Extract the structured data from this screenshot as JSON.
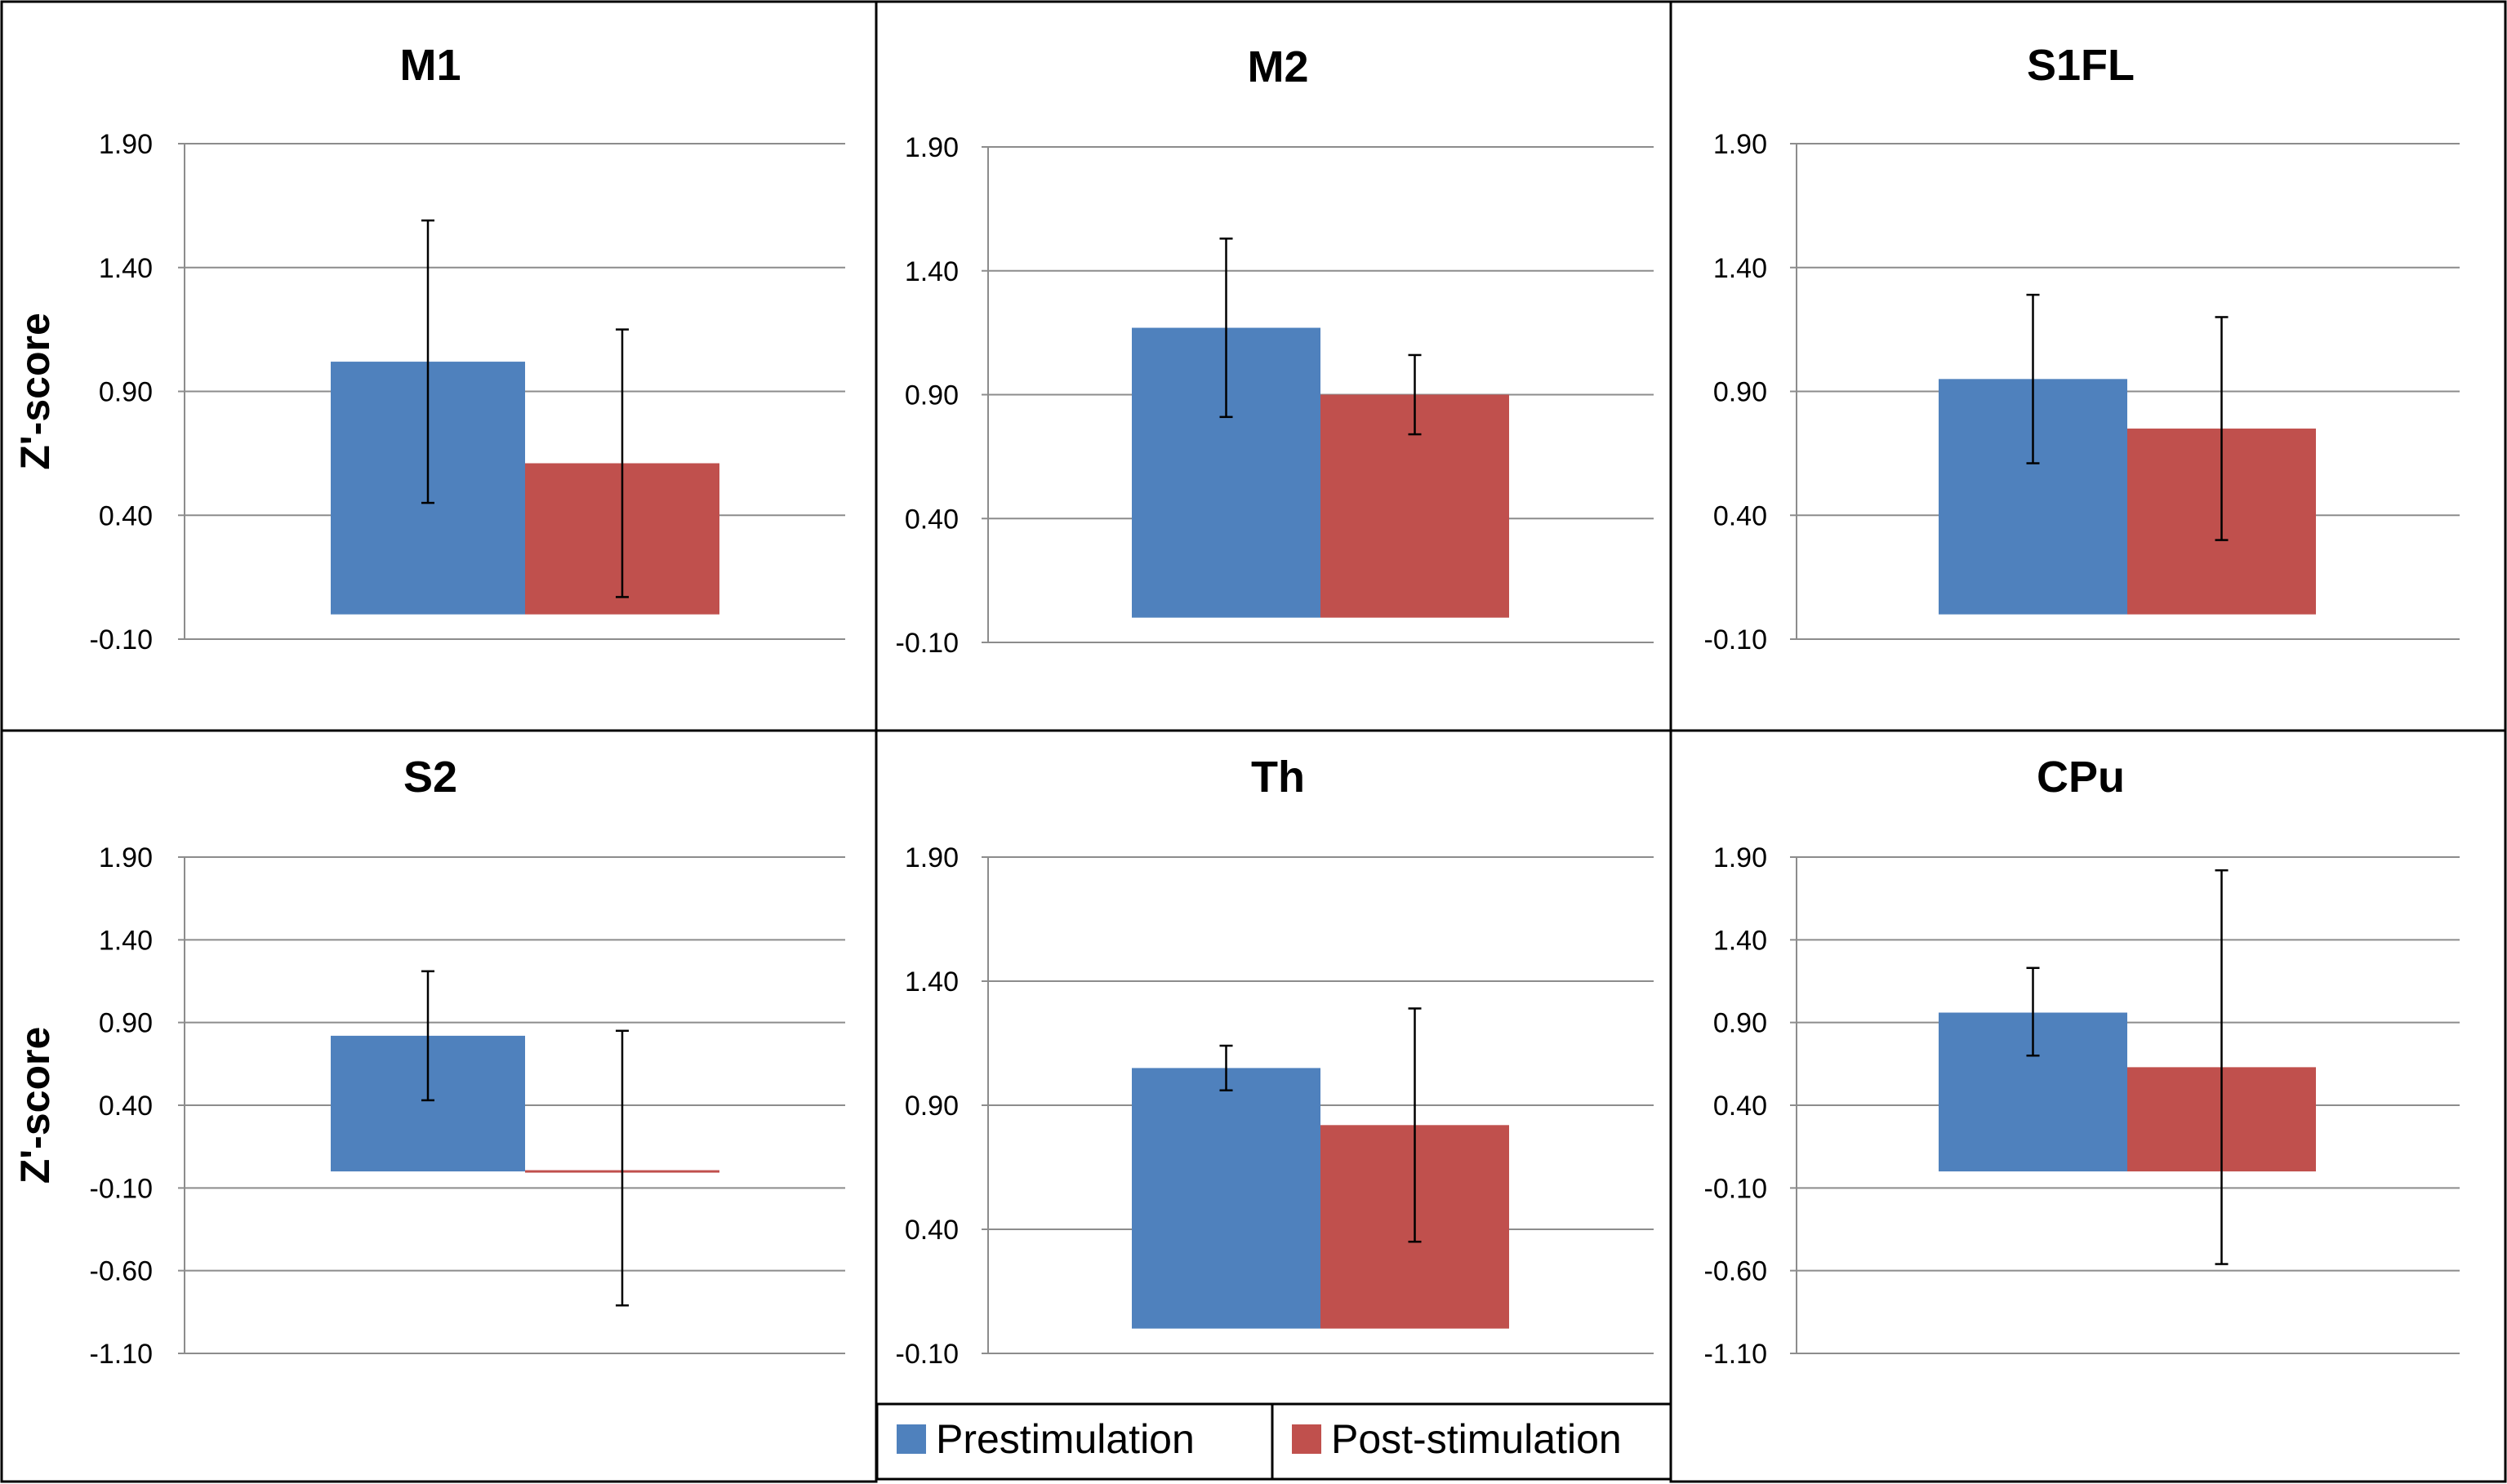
{
  "colors": {
    "prestimulation": "#4F81BD",
    "post_stimulation": "#C0504D",
    "grid": "#8C8C8C",
    "border": "#000000"
  },
  "legend": {
    "items": [
      "Prestimulation",
      "Post-stimulation"
    ],
    "placement": "bottom-center"
  },
  "chart_data": [
    {
      "type": "bar",
      "title": "M1",
      "ylabel": "Z'-score",
      "ylim": [
        -0.1,
        1.9
      ],
      "yticks": [
        "1.90",
        "1.40",
        "0.90",
        "0.40",
        "-0.10"
      ],
      "series": [
        {
          "name": "Prestimulation",
          "values": [
            1.02
          ],
          "error_low": [
            0.45
          ],
          "error_high": [
            1.59
          ]
        },
        {
          "name": "Post-stimulation",
          "values": [
            0.61
          ],
          "error_low": [
            0.07
          ],
          "error_high": [
            1.15
          ]
        }
      ]
    },
    {
      "type": "bar",
      "title": "M2",
      "ylabel": "",
      "ylim": [
        -0.1,
        1.9
      ],
      "yticks": [
        "1.90",
        "1.40",
        "0.90",
        "0.40",
        "-0.10"
      ],
      "series": [
        {
          "name": "Prestimulation",
          "values": [
            1.17
          ],
          "error_low": [
            0.81
          ],
          "error_high": [
            1.53
          ]
        },
        {
          "name": "Post-stimulation",
          "values": [
            0.9
          ],
          "error_low": [
            0.74
          ],
          "error_high": [
            1.06
          ]
        }
      ]
    },
    {
      "type": "bar",
      "title": "S1FL",
      "ylabel": "",
      "ylim": [
        -0.1,
        1.9
      ],
      "yticks": [
        "1.90",
        "1.40",
        "0.90",
        "0.40",
        "-0.10"
      ],
      "series": [
        {
          "name": "Prestimulation",
          "values": [
            0.95
          ],
          "error_low": [
            0.61
          ],
          "error_high": [
            1.29
          ]
        },
        {
          "name": "Post-stimulation",
          "values": [
            0.75
          ],
          "error_low": [
            0.3
          ],
          "error_high": [
            1.2
          ]
        }
      ]
    },
    {
      "type": "bar",
      "title": "S2",
      "ylabel": "Z'-score",
      "ylim": [
        -1.1,
        1.9
      ],
      "yticks": [
        "1.90",
        "1.40",
        "0.90",
        "0.40",
        "-0.10",
        "-0.60",
        "-1.10"
      ],
      "series": [
        {
          "name": "Prestimulation",
          "values": [
            0.82
          ],
          "error_low": [
            0.43
          ],
          "error_high": [
            1.21
          ]
        },
        {
          "name": "Post-stimulation",
          "values": [
            0.01
          ],
          "error_low": [
            -0.81
          ],
          "error_high": [
            0.85
          ]
        }
      ]
    },
    {
      "type": "bar",
      "title": "Th",
      "ylabel": "",
      "ylim": [
        -0.1,
        1.9
      ],
      "yticks": [
        "1.90",
        "1.40",
        "0.90",
        "0.40",
        "-0.10"
      ],
      "series": [
        {
          "name": "Prestimulation",
          "values": [
            1.05
          ],
          "error_low": [
            0.96
          ],
          "error_high": [
            1.14
          ]
        },
        {
          "name": "Post-stimulation",
          "values": [
            0.82
          ],
          "error_low": [
            0.35
          ],
          "error_high": [
            1.29
          ]
        }
      ]
    },
    {
      "type": "bar",
      "title": "CPu",
      "ylabel": "",
      "ylim": [
        -1.1,
        1.9
      ],
      "yticks": [
        "1.90",
        "1.40",
        "0.90",
        "0.40",
        "-0.10",
        "-0.60",
        "-1.10"
      ],
      "series": [
        {
          "name": "Prestimulation",
          "values": [
            0.96
          ],
          "error_low": [
            0.7
          ],
          "error_high": [
            1.23
          ]
        },
        {
          "name": "Post-stimulation",
          "values": [
            0.63
          ],
          "error_low": [
            -0.56
          ],
          "error_high": [
            1.82
          ]
        }
      ]
    }
  ]
}
